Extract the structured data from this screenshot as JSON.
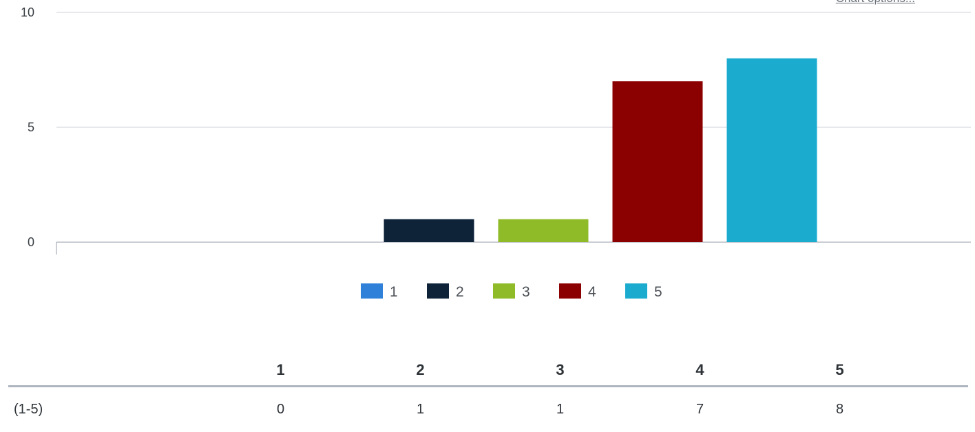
{
  "chart_options_label": "Chart options...",
  "chart_data": {
    "type": "bar",
    "categories": [
      "1",
      "2",
      "3",
      "4",
      "5"
    ],
    "values": [
      0,
      1,
      1,
      7,
      8
    ],
    "colors": [
      "#2f80d8",
      "#0e2238",
      "#8fbb29",
      "#8b0000",
      "#1aabcf"
    ],
    "yticks": [
      0,
      5,
      10
    ],
    "ylim": [
      0,
      10
    ],
    "grid": true,
    "legend": {
      "position": "bottom",
      "entries": [
        "1",
        "2",
        "3",
        "4",
        "5"
      ]
    }
  },
  "table": {
    "headers": [
      "",
      "1",
      "2",
      "3",
      "4",
      "5"
    ],
    "row": {
      "label": "(1-5)",
      "values": [
        "0",
        "1",
        "1",
        "7",
        "8"
      ]
    }
  }
}
